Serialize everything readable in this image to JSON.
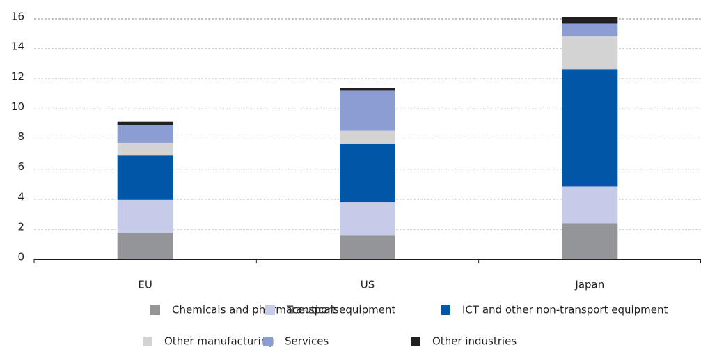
{
  "chart_data": {
    "type": "stacked-bar",
    "categories": [
      "EU",
      "US",
      "Japan"
    ],
    "series": [
      {
        "name": "Chemicals and pharmaceuticals",
        "color": "#939598",
        "values": [
          1.75,
          1.6,
          2.4
        ]
      },
      {
        "name": "Transport equipment",
        "color": "#c5cbe8",
        "values": [
          2.2,
          2.2,
          2.45
        ]
      },
      {
        "name": "ICT and other non-transport equipment",
        "color": "#0057a8",
        "values": [
          2.95,
          3.9,
          7.8
        ]
      },
      {
        "name": "Other manufacturing",
        "color": "#d3d3d3",
        "values": [
          0.85,
          0.85,
          2.2
        ]
      },
      {
        "name": "Services",
        "color": "#8b9dd2",
        "values": [
          1.2,
          2.7,
          0.85
        ]
      },
      {
        "name": "Other industries",
        "color": "#231f20",
        "values": [
          0.2,
          0.15,
          0.4
        ]
      }
    ],
    "ylim": [
      0,
      16
    ],
    "yticks": [
      0,
      2,
      4,
      6,
      8,
      10,
      12,
      14,
      16
    ],
    "grid": true
  }
}
